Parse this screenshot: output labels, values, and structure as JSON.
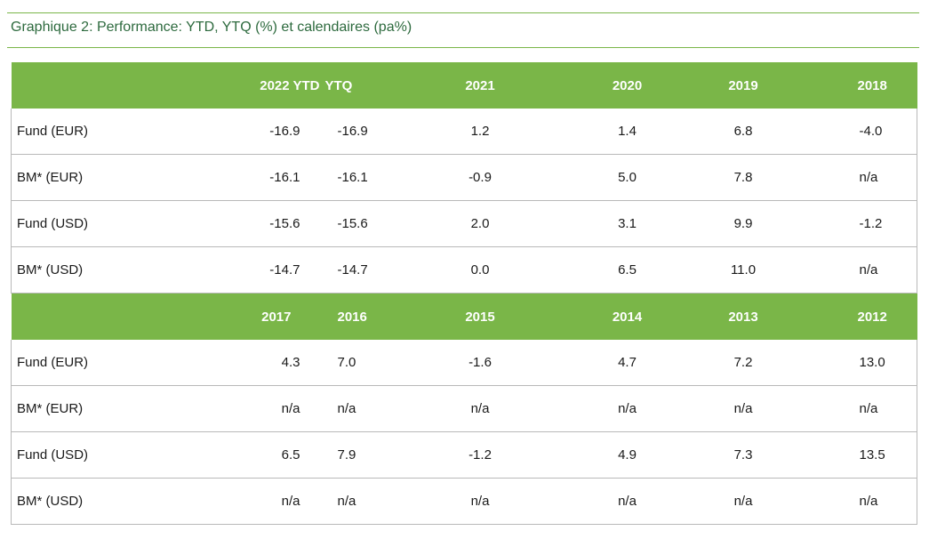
{
  "caption": "Graphique 2: Performance: YTD, YTQ (%) et calendaires (pa%)",
  "sections": [
    {
      "header": [
        "",
        "2022 YTD",
        "YTQ",
        "2021",
        "2020",
        "2019",
        "2018"
      ],
      "rows": [
        {
          "label": "Fund (EUR)",
          "values": [
            "-16.9",
            "-16.9",
            "1.2",
            "1.4",
            "6.8",
            "-4.0"
          ]
        },
        {
          "label": "BM* (EUR)",
          "values": [
            "-16.1",
            "-16.1",
            "-0.9",
            "5.0",
            "7.8",
            "n/a"
          ]
        },
        {
          "label": "Fund (USD)",
          "values": [
            "-15.6",
            "-15.6",
            "2.0",
            "3.1",
            "9.9",
            "-1.2"
          ]
        },
        {
          "label": "BM* (USD)",
          "values": [
            "-14.7",
            "-14.7",
            "0.0",
            "6.5",
            "11.0",
            "n/a"
          ]
        }
      ]
    },
    {
      "header": [
        "",
        "2017",
        "2016",
        "2015",
        "2014",
        "2013",
        "2012"
      ],
      "rows": [
        {
          "label": "Fund (EUR)",
          "values": [
            "4.3",
            "7.0",
            "-1.6",
            "4.7",
            "7.2",
            "13.0"
          ]
        },
        {
          "label": "BM* (EUR)",
          "values": [
            "n/a",
            "n/a",
            "n/a",
            "n/a",
            "n/a",
            "n/a"
          ]
        },
        {
          "label": "Fund (USD)",
          "values": [
            "6.5",
            "7.9",
            "-1.2",
            "4.9",
            "7.3",
            "13.5"
          ]
        },
        {
          "label": "BM* (USD)",
          "values": [
            "n/a",
            "n/a",
            "n/a",
            "n/a",
            "n/a",
            "n/a"
          ]
        }
      ]
    }
  ],
  "colors": {
    "header_bg": "#7ab648",
    "caption_text": "#2d6a3e",
    "rule": "#7ab648",
    "row_divider": "#b9b9b9",
    "accent_divider": "#5b9bd5"
  }
}
